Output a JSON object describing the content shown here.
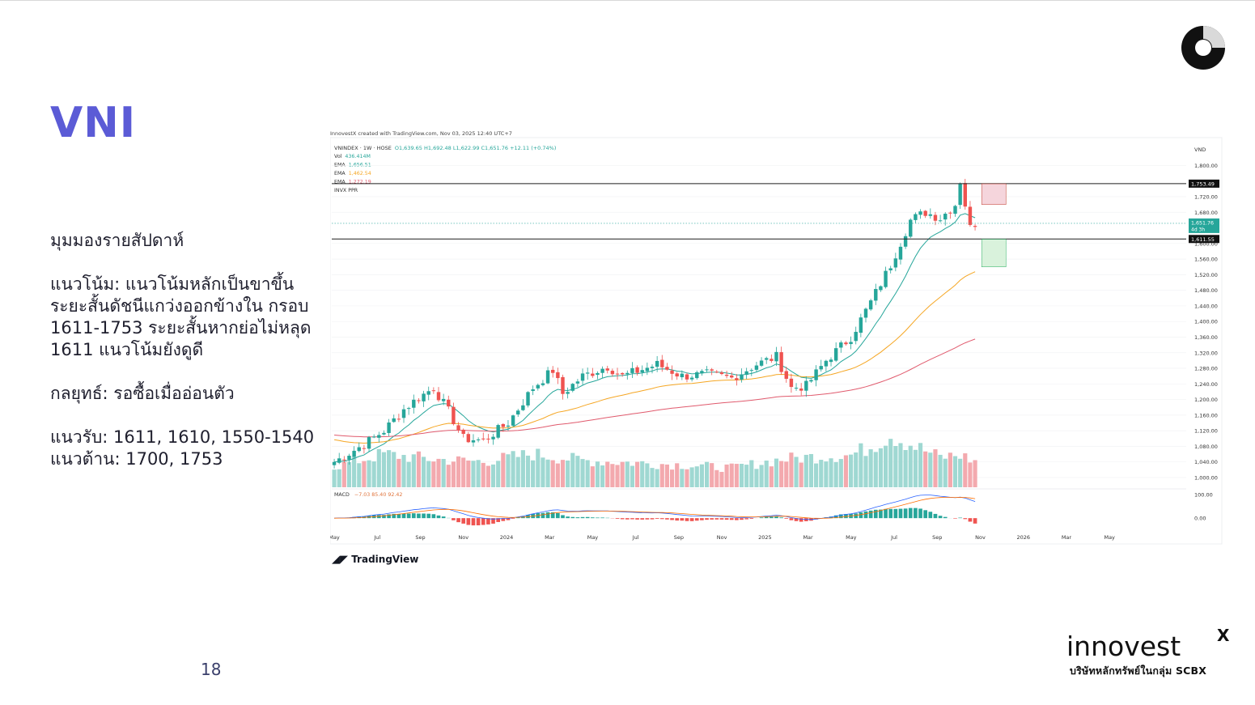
{
  "slide": {
    "title": "VNI",
    "page_number": "18",
    "notes": [
      "มุมมองรายสัปดาห์",
      "แนวโน้ม: แนวโน้มหลักเป็นขาขึ้น ระยะสั้นดัชนีแกว่งออกข้างใน กรอบ 1611-1753 ระยะสั้นหากย่อไม่หลุด 1611 แนวโน้มยังดูดี",
      "กลยุทธ์: รอซื้อเมื่ออ่อนตัว",
      "แนวรับ: 1611, 1610, 1550-1540\nแนวต้าน: 1700, 1753"
    ],
    "brand": {
      "logo_text": "innovest",
      "logo_x": "X",
      "tagline": "บริษัทหลักทรัพย์ในกลุ่ม SCBX",
      "accent": "#5b5bd6"
    },
    "tradingview_label": "TradingView"
  },
  "chart_data": {
    "type": "candlestick",
    "caption": "InnovestX created with TradingView.com, Nov 03, 2025 12:40 UTC+7",
    "symbol_line": "VNINDEX · 1W · HOSE",
    "ohlc_line": "O1,639.65 H1,692.48 L1,622.99 C1,651.76 +12.11 (+0.74%)",
    "legend": [
      {
        "label": "Vol",
        "value": "436.414M",
        "color": "#26a69a"
      },
      {
        "label": "EMA",
        "value": "1,656.51",
        "color": "#26a69a"
      },
      {
        "label": "EMA",
        "value": "1,462.54",
        "color": "#f5a623"
      },
      {
        "label": "EMA",
        "value": "1,272.19",
        "color": "#e05a6d"
      },
      {
        "label": "INVX PPR",
        "value": "",
        "color": "#555555"
      }
    ],
    "currency": "VND",
    "ylim": [
      975,
      1830
    ],
    "y_ticks": [
      1000,
      1040,
      1080,
      1120,
      1160,
      1200,
      1240,
      1280,
      1320,
      1360,
      1400,
      1440,
      1480,
      1520,
      1560,
      1600,
      1680,
      1720,
      1800
    ],
    "x_ticks": [
      "May",
      "Jul",
      "Sep",
      "Nov",
      "2024",
      "Mar",
      "May",
      "Jul",
      "Sep",
      "Nov",
      "2025",
      "Mar",
      "May",
      "Jul",
      "Sep",
      "Nov",
      "2026",
      "Mar",
      "May"
    ],
    "weeks": 130,
    "start": "2023-05",
    "levels": [
      {
        "value": 1753.49,
        "label": "1,753.49"
      },
      {
        "value": 1611.55,
        "label": "1,611.55"
      }
    ],
    "last": {
      "value": 1651.76,
      "label": "1,651.76",
      "sub": "4d 3h"
    },
    "close_anchors": [
      [
        0,
        1040
      ],
      [
        6,
        1085
      ],
      [
        10,
        1120
      ],
      [
        14,
        1175
      ],
      [
        17,
        1205
      ],
      [
        20,
        1230
      ],
      [
        23,
        1170
      ],
      [
        26,
        1100
      ],
      [
        30,
        1095
      ],
      [
        35,
        1140
      ],
      [
        40,
        1230
      ],
      [
        44,
        1275
      ],
      [
        46,
        1215
      ],
      [
        50,
        1260
      ],
      [
        55,
        1285
      ],
      [
        58,
        1260
      ],
      [
        65,
        1290
      ],
      [
        70,
        1260
      ],
      [
        75,
        1265
      ],
      [
        80,
        1255
      ],
      [
        85,
        1290
      ],
      [
        89,
        1310
      ],
      [
        92,
        1230
      ],
      [
        95,
        1235
      ],
      [
        99,
        1300
      ],
      [
        104,
        1360
      ],
      [
        108,
        1450
      ],
      [
        112,
        1545
      ],
      [
        116,
        1660
      ],
      [
        119,
        1680
      ],
      [
        122,
        1665
      ],
      [
        125,
        1700
      ],
      [
        126,
        1760
      ],
      [
        127,
        1700
      ],
      [
        128,
        1640
      ],
      [
        129,
        1652
      ]
    ],
    "volume_ylim": [
      0,
      1000
    ],
    "volume_anchors": [
      [
        0,
        380
      ],
      [
        10,
        620
      ],
      [
        20,
        520
      ],
      [
        30,
        480
      ],
      [
        40,
        620
      ],
      [
        50,
        500
      ],
      [
        60,
        460
      ],
      [
        70,
        420
      ],
      [
        80,
        360
      ],
      [
        90,
        520
      ],
      [
        98,
        580
      ],
      [
        104,
        600
      ],
      [
        108,
        760
      ],
      [
        112,
        980
      ],
      [
        118,
        720
      ],
      [
        122,
        560
      ],
      [
        126,
        600
      ],
      [
        129,
        480
      ]
    ],
    "macd": {
      "label": "MACD",
      "values": "−7.03  85.40  92.42",
      "ylim": [
        -20,
        110
      ],
      "ticks": [
        0,
        100
      ]
    }
  }
}
